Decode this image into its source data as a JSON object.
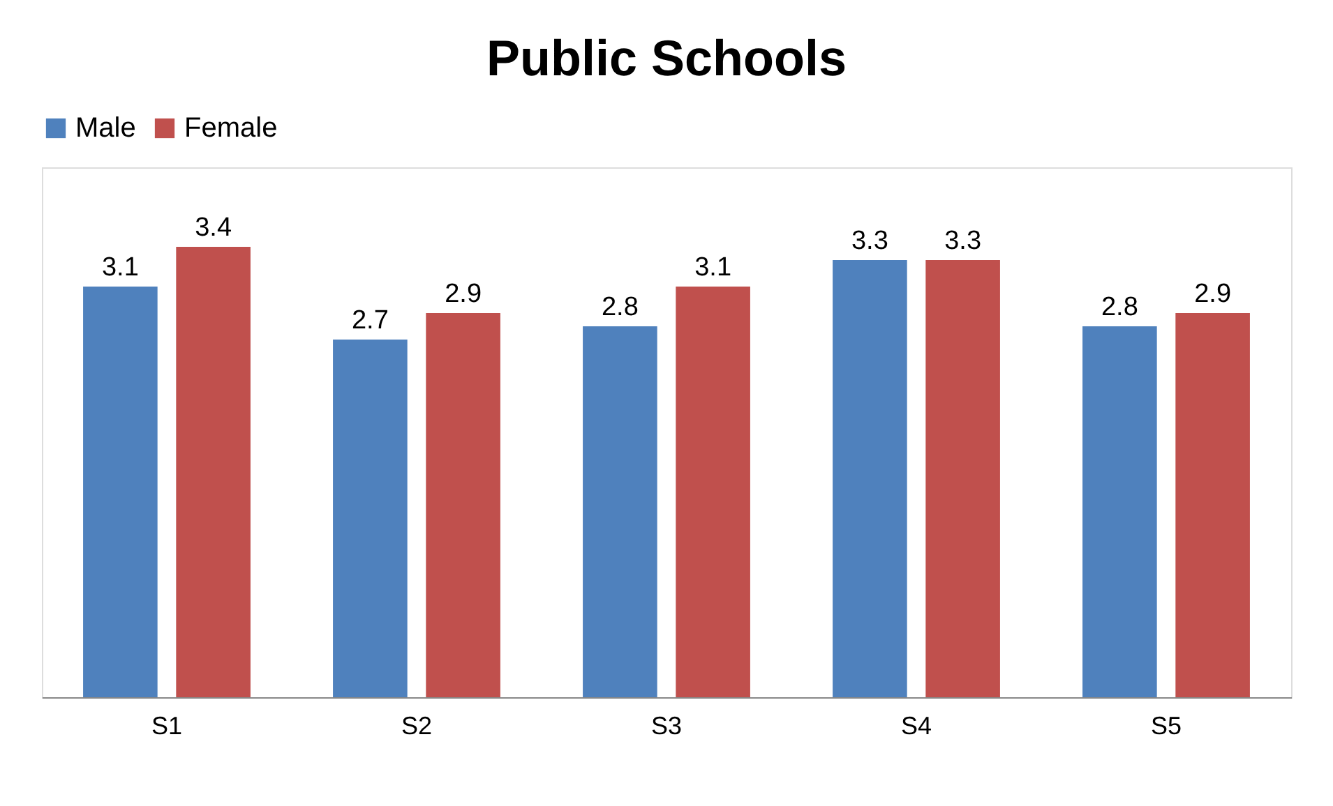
{
  "chart_data": {
    "type": "bar",
    "title": "Public Schools",
    "categories": [
      "S1",
      "S2",
      "S3",
      "S4",
      "S5"
    ],
    "series": [
      {
        "name": "Male",
        "color": "#4f81bd",
        "values": [
          3.1,
          2.7,
          2.8,
          3.3,
          2.8
        ]
      },
      {
        "name": "Female",
        "color": "#c0504d",
        "values": [
          3.4,
          2.9,
          3.1,
          3.3,
          2.9
        ]
      }
    ],
    "ylim": [
      0,
      4
    ],
    "tick_labels": "x",
    "data_labels": true,
    "legend": "top",
    "grid": false
  }
}
